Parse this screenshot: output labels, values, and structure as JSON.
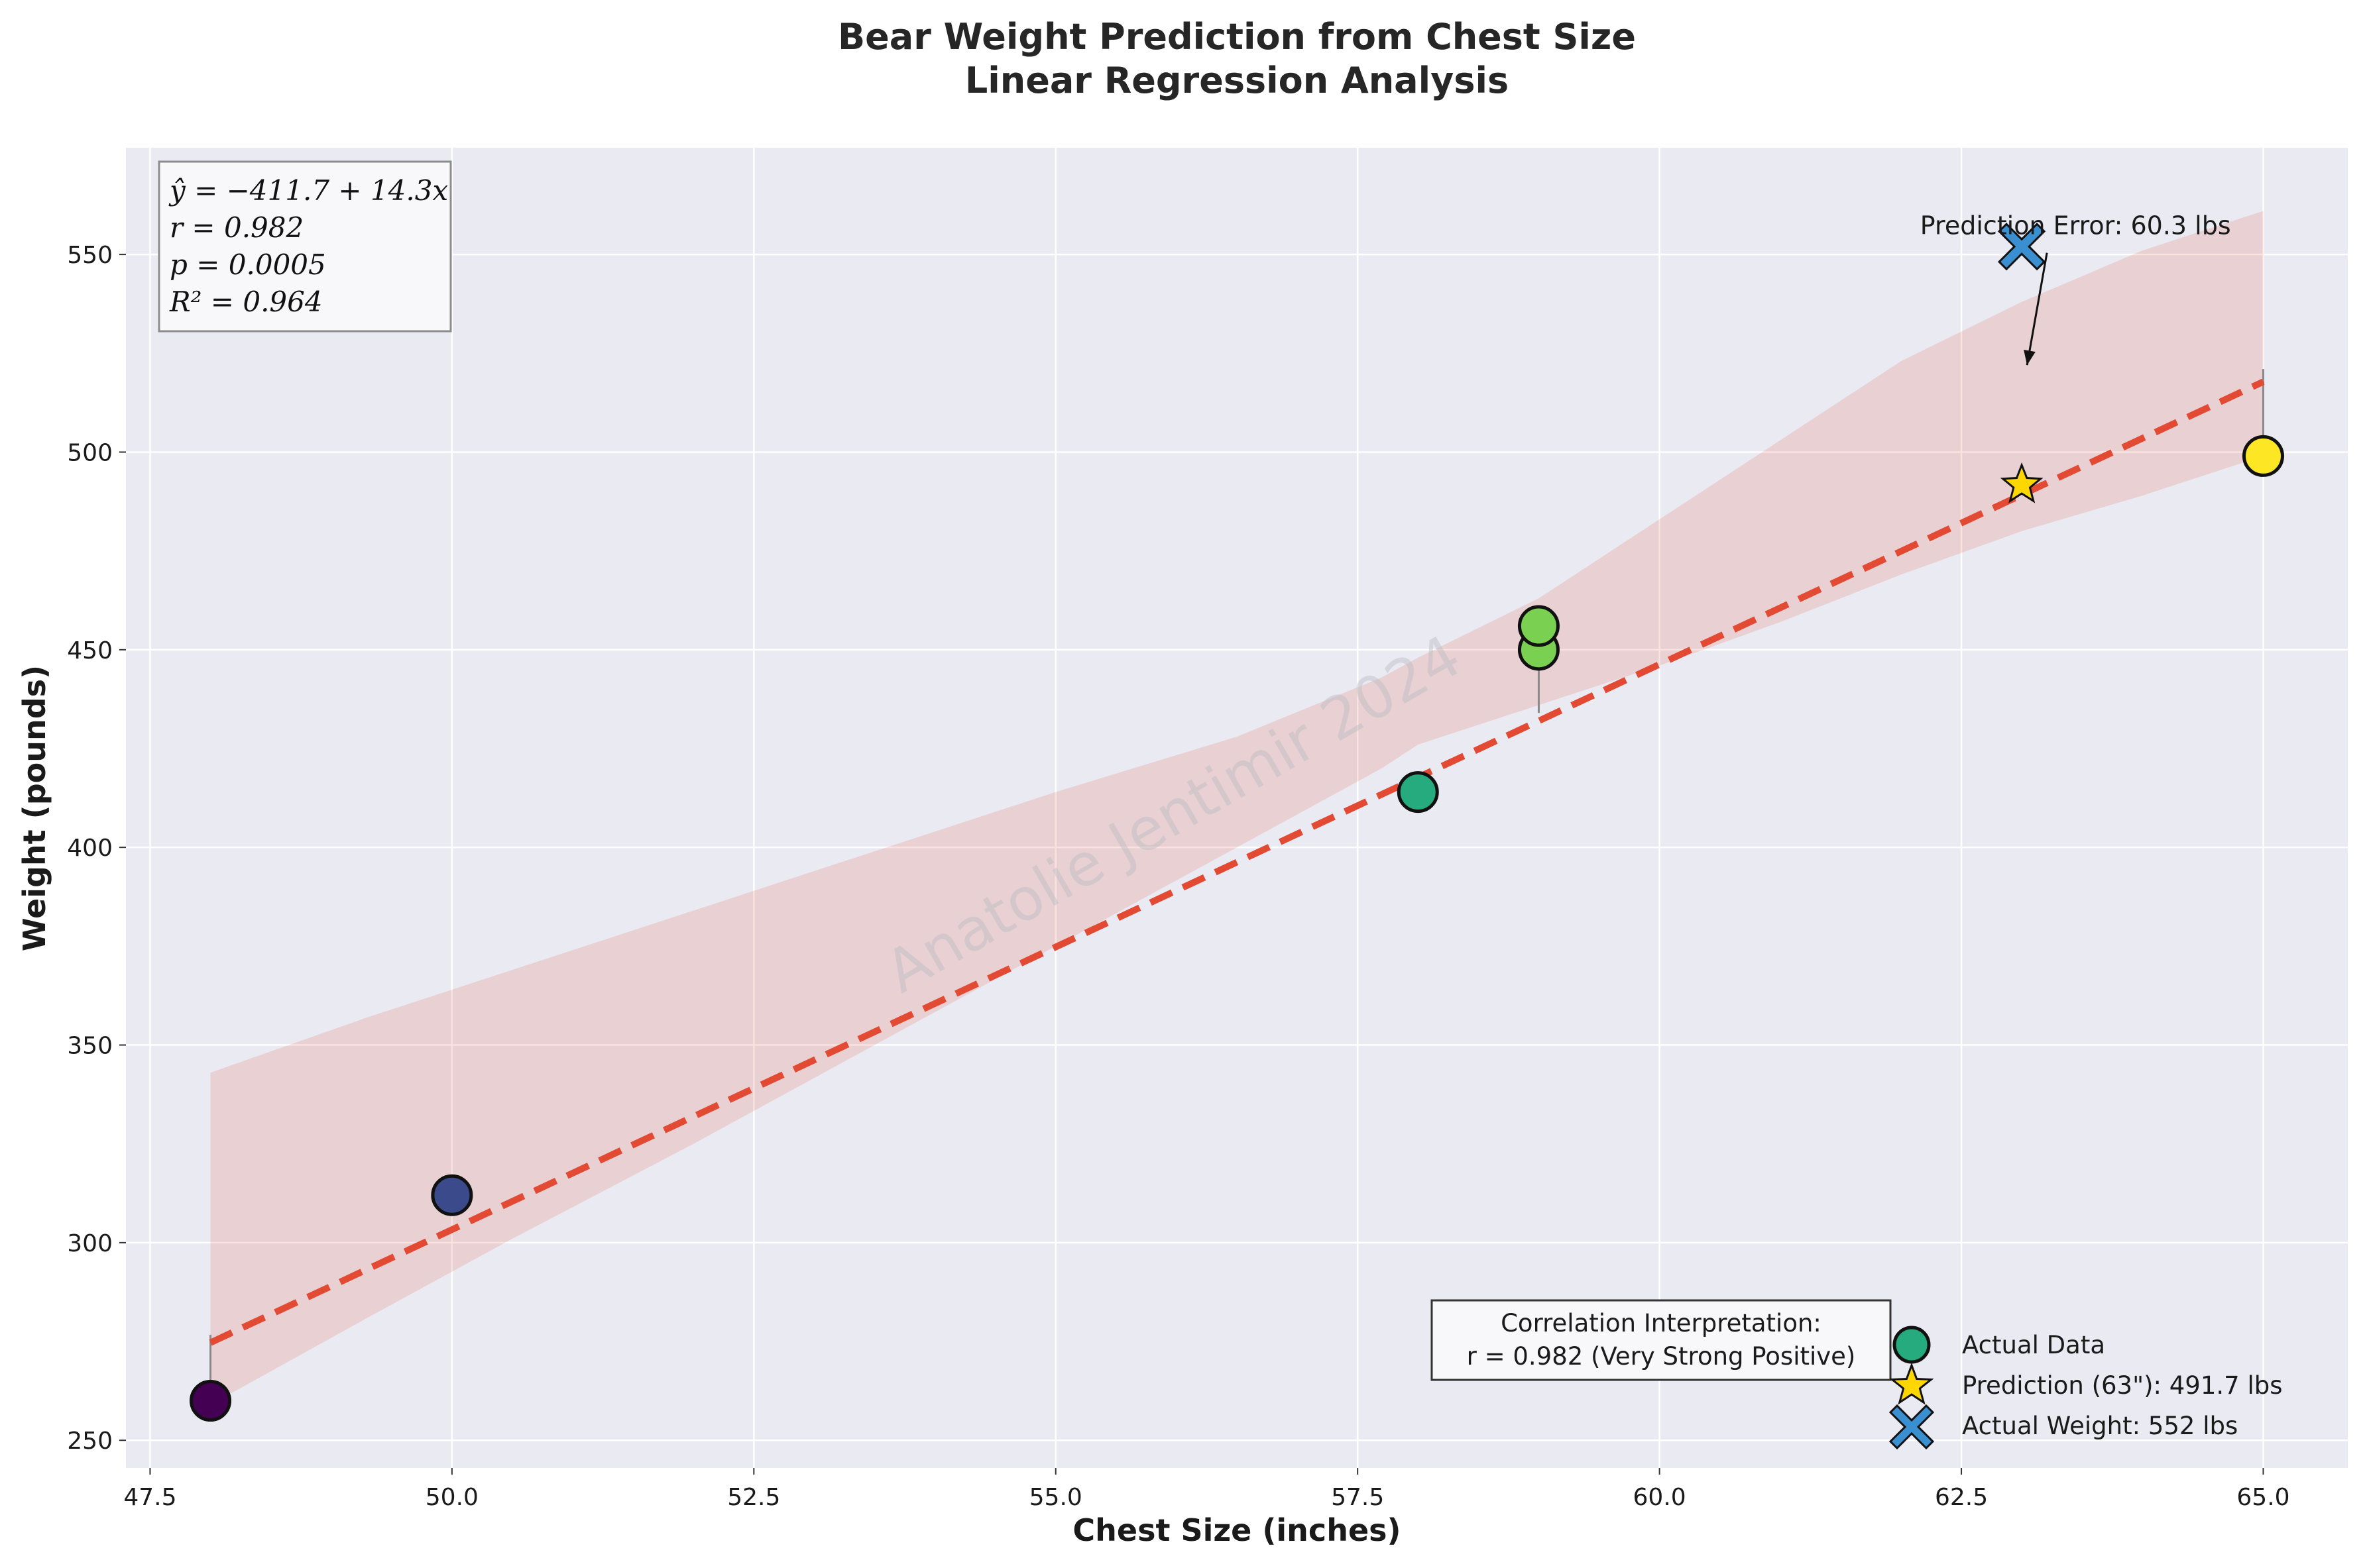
{
  "chart_data": {
    "type": "scatter",
    "title": "Bear Weight Prediction from Chest Size",
    "subtitle": "Linear Regression Analysis",
    "xlabel": "Chest Size (inches)",
    "ylabel": "Weight (pounds)",
    "xlim": [
      47.3,
      65.7
    ],
    "ylim": [
      243,
      577
    ],
    "x_ticks": [
      47.5,
      50.0,
      52.5,
      55.0,
      57.5,
      60.0,
      62.5,
      65.0
    ],
    "x_tick_labels": [
      "47.5",
      "50.0",
      "52.5",
      "55.0",
      "57.5",
      "60.0",
      "62.5",
      "65.0"
    ],
    "y_ticks": [
      250,
      300,
      350,
      400,
      450,
      500,
      550
    ],
    "y_tick_labels": [
      "250",
      "300",
      "350",
      "400",
      "450",
      "500",
      "550"
    ],
    "grid": true,
    "background_color": "#eaeaf2",
    "actual_data": {
      "name": "Actual Data",
      "points": [
        {
          "x": 48,
          "y": 260,
          "color": "#440154"
        },
        {
          "x": 50,
          "y": 312,
          "color": "#3b4a8a"
        },
        {
          "x": 58,
          "y": 414,
          "color": "#25ab7d"
        },
        {
          "x": 59,
          "y": 450,
          "color": "#7ad151"
        },
        {
          "x": 59,
          "y": 456,
          "color": "#7ad151"
        },
        {
          "x": 65,
          "y": 499,
          "color": "#fde725"
        }
      ]
    },
    "regression_line": {
      "intercept": -411.7,
      "slope": 14.3,
      "x_range": [
        48,
        65
      ],
      "color": "#e24a33"
    },
    "confidence_band": {
      "x": [
        48,
        49.3,
        50.5,
        52,
        53.5,
        55,
        56.5,
        57.7,
        58,
        59,
        60,
        61,
        62,
        63,
        64,
        65
      ],
      "lower": [
        259,
        281,
        301,
        325,
        350,
        375,
        400,
        420,
        426,
        436,
        446,
        457,
        469,
        480,
        489,
        499
      ],
      "upper": [
        343,
        357,
        369,
        384,
        399,
        414,
        428,
        443,
        448,
        463,
        483,
        503,
        523,
        538,
        551,
        561
      ],
      "color": "#e24a33"
    },
    "residual_lines": [
      {
        "x": 48,
        "y_from": 260,
        "y_to": 276.7
      },
      {
        "x": 59,
        "y_from": 450,
        "y_to": 434
      },
      {
        "x": 65,
        "y_from": 499,
        "y_to": 521
      }
    ],
    "prediction": {
      "name": "Prediction (63\"): 491.7 lbs",
      "x": 63,
      "y": 491.7,
      "color": "#ffd700"
    },
    "actual_weight": {
      "name": "Actual Weight: 552 lbs",
      "x": 63,
      "y": 552,
      "color": "#3a8fd0"
    },
    "annotation": {
      "text": "Prediction Error: 60.3 lbs",
      "arrow_to": {
        "x": 63,
        "y": 522
      },
      "text_anchor": {
        "x": 63.5,
        "y": 537
      }
    },
    "stats_box": {
      "lines": [
        "ŷ = −411.7 + 14.3x",
        "r = 0.982",
        "p = 0.0005",
        "R² = 0.964"
      ]
    },
    "interpretation_box": {
      "lines": [
        "Correlation Interpretation:",
        "r = 0.982 (Very Strong Positive)"
      ]
    },
    "legend": {
      "location": "lower-right",
      "entries": [
        "Actual Data",
        "Prediction (63\"): 491.7 lbs",
        "Actual Weight: 552 lbs"
      ]
    },
    "watermark": "Anatolie Jentimir 2024"
  }
}
